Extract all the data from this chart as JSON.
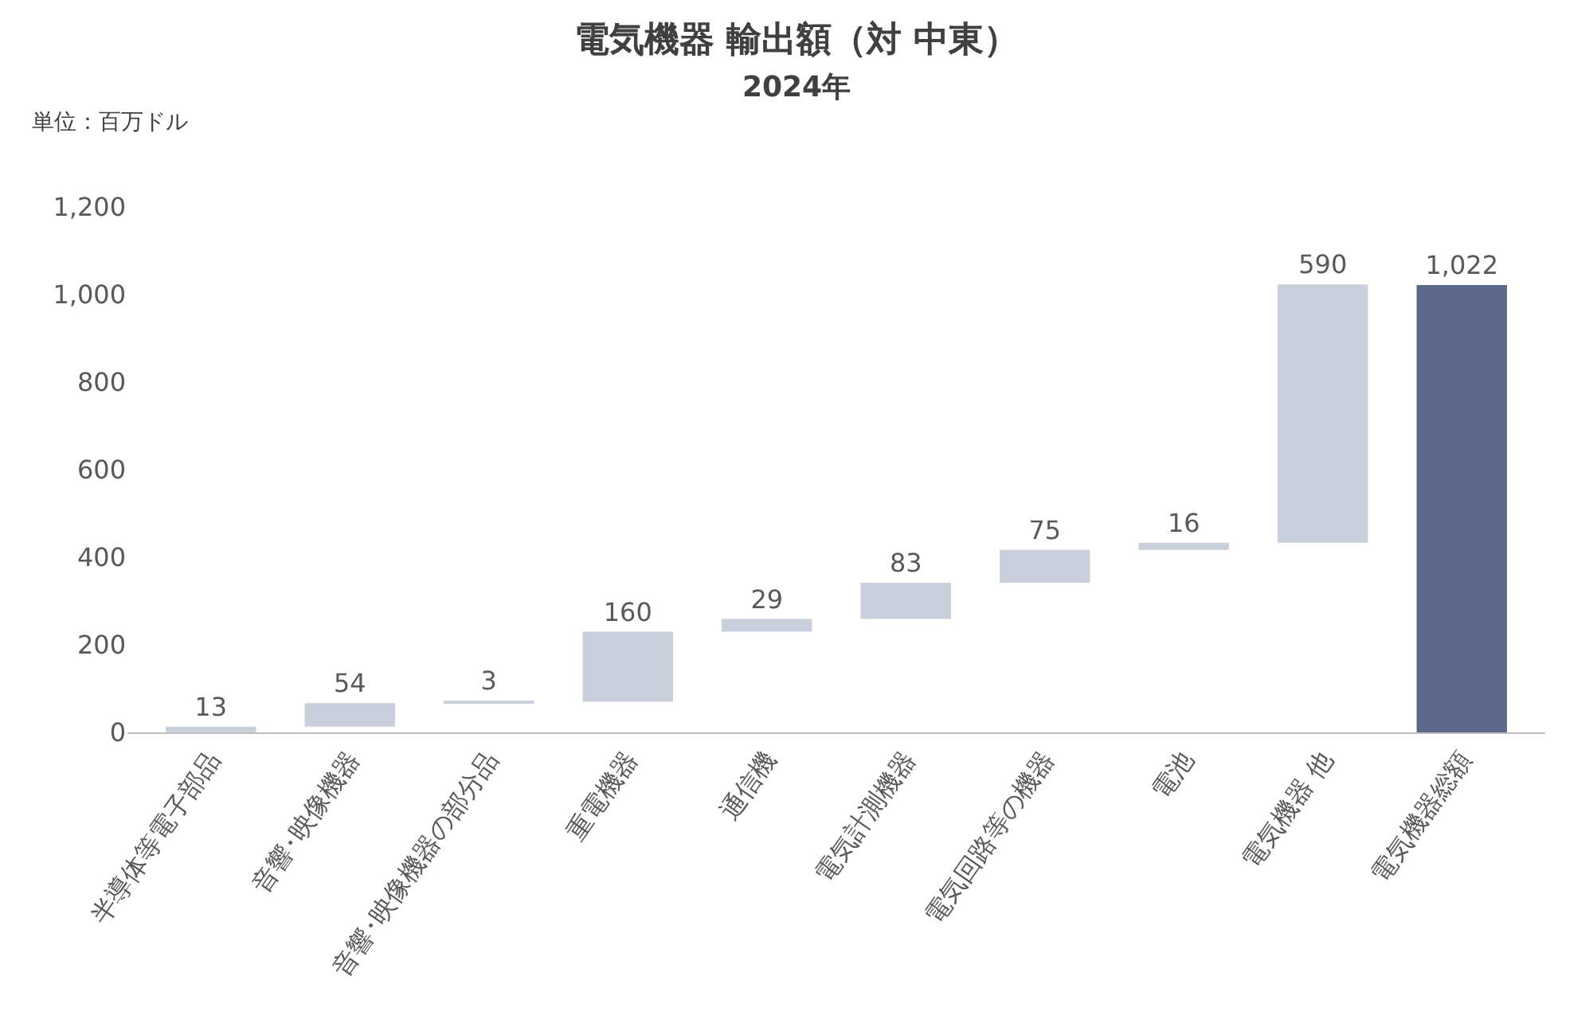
{
  "chart_data": {
    "type": "bar",
    "title": "電気機器 輸出額（対 中東）",
    "subtitle": "2024年",
    "annotations": [
      "単位：百万ドル"
    ],
    "categories": [
      "半導体等電子部品",
      "音響･映像機器",
      "音響･映像機器の部分品",
      "重電機器",
      "通信機",
      "電気計測機器",
      "電気回路等の機器",
      "電池",
      "電気機器 他",
      "電気機器総額"
    ],
    "values": [
      13,
      54,
      3,
      160,
      29,
      83,
      75,
      16,
      590,
      1022
    ],
    "base": [
      0,
      13,
      67,
      70,
      230,
      259,
      342,
      417,
      433,
      0
    ],
    "colors": [
      "#c9cfdb",
      "#c9cfdb",
      "#c9cfdb",
      "#c9cfdb",
      "#c9cfdb",
      "#c9cfdb",
      "#c9cfdb",
      "#c9cfdb",
      "#c9cfdb",
      "#5b6a88"
    ],
    "value_labels": [
      "13",
      "54",
      "3",
      "160",
      "29",
      "83",
      "75",
      "16",
      "590",
      "1,022"
    ],
    "ylim": [
      0,
      1200
    ],
    "yticks": [
      0,
      200,
      400,
      600,
      800,
      {
        "value": 1000,
        "label": "1,000"
      },
      {
        "value": 1200,
        "label": "1,200"
      }
    ],
    "grid": false
  }
}
